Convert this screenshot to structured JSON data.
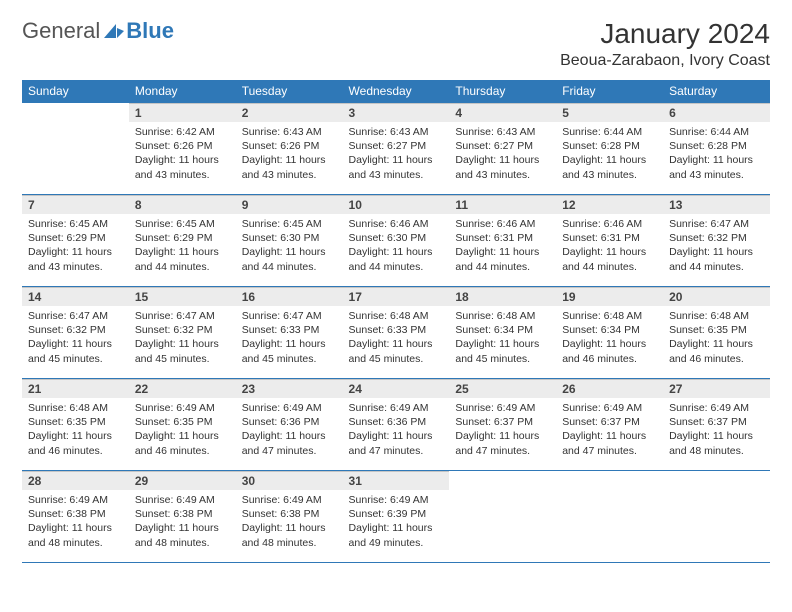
{
  "logo": {
    "text1": "General",
    "text2": "Blue"
  },
  "title": "January 2024",
  "location": "Beoua-Zarabaon, Ivory Coast",
  "colors": {
    "header_bg": "#2f78b7",
    "header_text": "#ffffff",
    "daynum_bg": "#ececec",
    "rule": "#2f78b7",
    "body_text": "#333333"
  },
  "weekdays": [
    "Sunday",
    "Monday",
    "Tuesday",
    "Wednesday",
    "Thursday",
    "Friday",
    "Saturday"
  ],
  "weeks": [
    [
      {
        "n": "",
        "sr": "",
        "ss": "",
        "dl1": "",
        "dl2": ""
      },
      {
        "n": "1",
        "sr": "Sunrise: 6:42 AM",
        "ss": "Sunset: 6:26 PM",
        "dl1": "Daylight: 11 hours",
        "dl2": "and 43 minutes."
      },
      {
        "n": "2",
        "sr": "Sunrise: 6:43 AM",
        "ss": "Sunset: 6:26 PM",
        "dl1": "Daylight: 11 hours",
        "dl2": "and 43 minutes."
      },
      {
        "n": "3",
        "sr": "Sunrise: 6:43 AM",
        "ss": "Sunset: 6:27 PM",
        "dl1": "Daylight: 11 hours",
        "dl2": "and 43 minutes."
      },
      {
        "n": "4",
        "sr": "Sunrise: 6:43 AM",
        "ss": "Sunset: 6:27 PM",
        "dl1": "Daylight: 11 hours",
        "dl2": "and 43 minutes."
      },
      {
        "n": "5",
        "sr": "Sunrise: 6:44 AM",
        "ss": "Sunset: 6:28 PM",
        "dl1": "Daylight: 11 hours",
        "dl2": "and 43 minutes."
      },
      {
        "n": "6",
        "sr": "Sunrise: 6:44 AM",
        "ss": "Sunset: 6:28 PM",
        "dl1": "Daylight: 11 hours",
        "dl2": "and 43 minutes."
      }
    ],
    [
      {
        "n": "7",
        "sr": "Sunrise: 6:45 AM",
        "ss": "Sunset: 6:29 PM",
        "dl1": "Daylight: 11 hours",
        "dl2": "and 43 minutes."
      },
      {
        "n": "8",
        "sr": "Sunrise: 6:45 AM",
        "ss": "Sunset: 6:29 PM",
        "dl1": "Daylight: 11 hours",
        "dl2": "and 44 minutes."
      },
      {
        "n": "9",
        "sr": "Sunrise: 6:45 AM",
        "ss": "Sunset: 6:30 PM",
        "dl1": "Daylight: 11 hours",
        "dl2": "and 44 minutes."
      },
      {
        "n": "10",
        "sr": "Sunrise: 6:46 AM",
        "ss": "Sunset: 6:30 PM",
        "dl1": "Daylight: 11 hours",
        "dl2": "and 44 minutes."
      },
      {
        "n": "11",
        "sr": "Sunrise: 6:46 AM",
        "ss": "Sunset: 6:31 PM",
        "dl1": "Daylight: 11 hours",
        "dl2": "and 44 minutes."
      },
      {
        "n": "12",
        "sr": "Sunrise: 6:46 AM",
        "ss": "Sunset: 6:31 PM",
        "dl1": "Daylight: 11 hours",
        "dl2": "and 44 minutes."
      },
      {
        "n": "13",
        "sr": "Sunrise: 6:47 AM",
        "ss": "Sunset: 6:32 PM",
        "dl1": "Daylight: 11 hours",
        "dl2": "and 44 minutes."
      }
    ],
    [
      {
        "n": "14",
        "sr": "Sunrise: 6:47 AM",
        "ss": "Sunset: 6:32 PM",
        "dl1": "Daylight: 11 hours",
        "dl2": "and 45 minutes."
      },
      {
        "n": "15",
        "sr": "Sunrise: 6:47 AM",
        "ss": "Sunset: 6:32 PM",
        "dl1": "Daylight: 11 hours",
        "dl2": "and 45 minutes."
      },
      {
        "n": "16",
        "sr": "Sunrise: 6:47 AM",
        "ss": "Sunset: 6:33 PM",
        "dl1": "Daylight: 11 hours",
        "dl2": "and 45 minutes."
      },
      {
        "n": "17",
        "sr": "Sunrise: 6:48 AM",
        "ss": "Sunset: 6:33 PM",
        "dl1": "Daylight: 11 hours",
        "dl2": "and 45 minutes."
      },
      {
        "n": "18",
        "sr": "Sunrise: 6:48 AM",
        "ss": "Sunset: 6:34 PM",
        "dl1": "Daylight: 11 hours",
        "dl2": "and 45 minutes."
      },
      {
        "n": "19",
        "sr": "Sunrise: 6:48 AM",
        "ss": "Sunset: 6:34 PM",
        "dl1": "Daylight: 11 hours",
        "dl2": "and 46 minutes."
      },
      {
        "n": "20",
        "sr": "Sunrise: 6:48 AM",
        "ss": "Sunset: 6:35 PM",
        "dl1": "Daylight: 11 hours",
        "dl2": "and 46 minutes."
      }
    ],
    [
      {
        "n": "21",
        "sr": "Sunrise: 6:48 AM",
        "ss": "Sunset: 6:35 PM",
        "dl1": "Daylight: 11 hours",
        "dl2": "and 46 minutes."
      },
      {
        "n": "22",
        "sr": "Sunrise: 6:49 AM",
        "ss": "Sunset: 6:35 PM",
        "dl1": "Daylight: 11 hours",
        "dl2": "and 46 minutes."
      },
      {
        "n": "23",
        "sr": "Sunrise: 6:49 AM",
        "ss": "Sunset: 6:36 PM",
        "dl1": "Daylight: 11 hours",
        "dl2": "and 47 minutes."
      },
      {
        "n": "24",
        "sr": "Sunrise: 6:49 AM",
        "ss": "Sunset: 6:36 PM",
        "dl1": "Daylight: 11 hours",
        "dl2": "and 47 minutes."
      },
      {
        "n": "25",
        "sr": "Sunrise: 6:49 AM",
        "ss": "Sunset: 6:37 PM",
        "dl1": "Daylight: 11 hours",
        "dl2": "and 47 minutes."
      },
      {
        "n": "26",
        "sr": "Sunrise: 6:49 AM",
        "ss": "Sunset: 6:37 PM",
        "dl1": "Daylight: 11 hours",
        "dl2": "and 47 minutes."
      },
      {
        "n": "27",
        "sr": "Sunrise: 6:49 AM",
        "ss": "Sunset: 6:37 PM",
        "dl1": "Daylight: 11 hours",
        "dl2": "and 48 minutes."
      }
    ],
    [
      {
        "n": "28",
        "sr": "Sunrise: 6:49 AM",
        "ss": "Sunset: 6:38 PM",
        "dl1": "Daylight: 11 hours",
        "dl2": "and 48 minutes."
      },
      {
        "n": "29",
        "sr": "Sunrise: 6:49 AM",
        "ss": "Sunset: 6:38 PM",
        "dl1": "Daylight: 11 hours",
        "dl2": "and 48 minutes."
      },
      {
        "n": "30",
        "sr": "Sunrise: 6:49 AM",
        "ss": "Sunset: 6:38 PM",
        "dl1": "Daylight: 11 hours",
        "dl2": "and 48 minutes."
      },
      {
        "n": "31",
        "sr": "Sunrise: 6:49 AM",
        "ss": "Sunset: 6:39 PM",
        "dl1": "Daylight: 11 hours",
        "dl2": "and 49 minutes."
      },
      {
        "n": "",
        "sr": "",
        "ss": "",
        "dl1": "",
        "dl2": ""
      },
      {
        "n": "",
        "sr": "",
        "ss": "",
        "dl1": "",
        "dl2": ""
      },
      {
        "n": "",
        "sr": "",
        "ss": "",
        "dl1": "",
        "dl2": ""
      }
    ]
  ]
}
